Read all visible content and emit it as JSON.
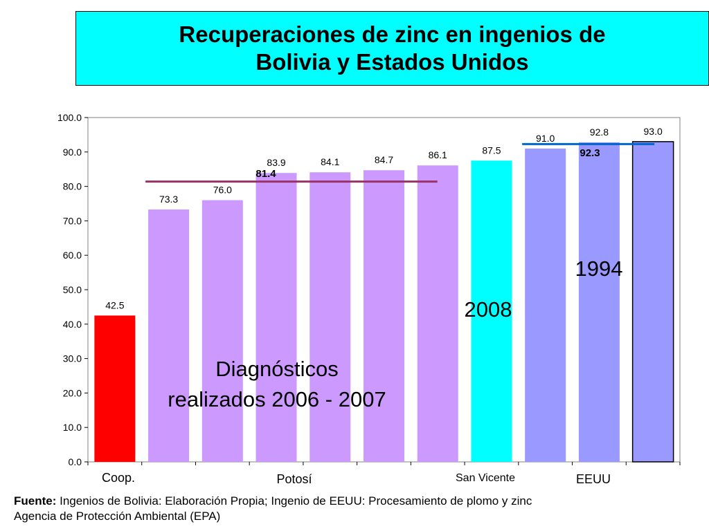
{
  "title": {
    "line1": "Recuperaciones de zinc en ingenios de",
    "line2": "Bolivia y Estados Unidos"
  },
  "chart_data": {
    "type": "bar",
    "ylim": [
      0,
      100
    ],
    "yticks": [
      "0.0",
      "10.0",
      "20.0",
      "30.0",
      "40.0",
      "50.0",
      "60.0",
      "70.0",
      "80.0",
      "90.0",
      "100.0"
    ],
    "values": [
      42.5,
      73.3,
      76.0,
      83.9,
      84.1,
      84.7,
      86.1,
      87.5,
      91.0,
      92.8,
      93.0
    ],
    "value_labels": [
      "42.5",
      "73.3",
      "76.0",
      "83.9",
      "84.1",
      "84.7",
      "86.1",
      "87.5",
      "91.0",
      "92.8",
      "93.0"
    ],
    "bar_colors": [
      "#ff0000",
      "#cc99ff",
      "#cc99ff",
      "#cc99ff",
      "#cc99ff",
      "#cc99ff",
      "#cc99ff",
      "#00ffff",
      "#9999ff",
      "#9999ff",
      "#9999ff"
    ],
    "groups": [
      {
        "label": "Coop.",
        "from": 0,
        "to": 0
      },
      {
        "label": "Potosí",
        "from": 1,
        "to": 6
      },
      {
        "label": "San Vicente",
        "from": 7,
        "to": 7
      },
      {
        "label": "EEUU",
        "from": 8,
        "to": 10
      }
    ],
    "averages": [
      {
        "label": "81.4",
        "value": 81.4,
        "from": 1,
        "to": 6,
        "color": "#993366"
      },
      {
        "label": "92.3",
        "value": 92.3,
        "from": 8,
        "to": 10,
        "color": "#0066cc"
      }
    ],
    "annotations": {
      "diag_line1": "Diagnósticos",
      "diag_line2": "realizados 2006 - 2007",
      "year_2008": "2008",
      "year_1994": "1994"
    },
    "grid": false,
    "legend": "none"
  },
  "source": {
    "label": "Fuente:",
    "line1": " Ingenios de Bolivia: Elaboración Propia; Ingenio de EEUU: Procesamiento de plomo y zinc",
    "line2": "Agencia de Protección Ambiental (EPA)"
  }
}
